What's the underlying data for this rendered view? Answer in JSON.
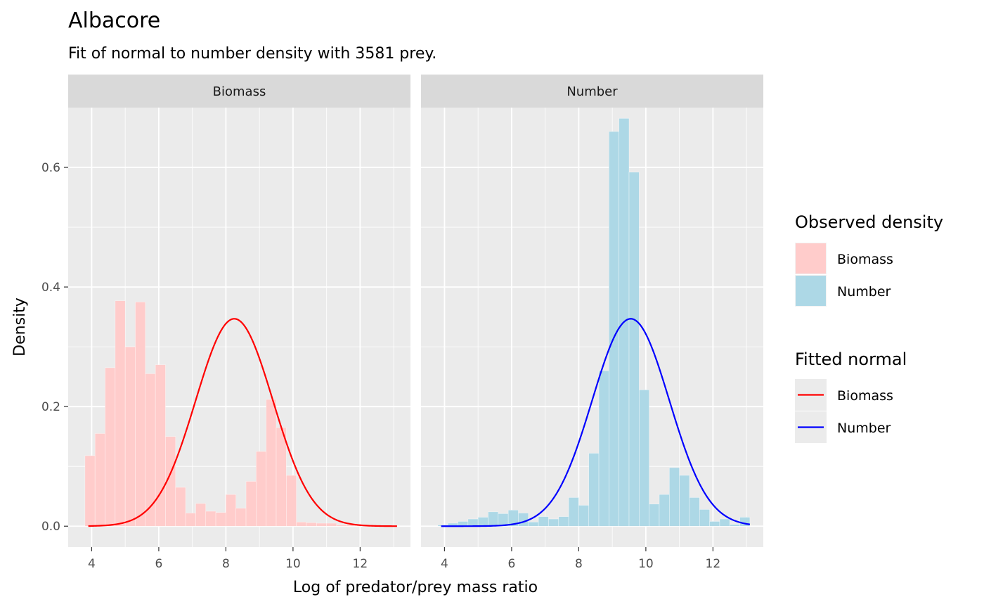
{
  "chart_data": {
    "type": "bar",
    "title": "Albacore",
    "subtitle": "Fit of normal to number density with 3581 prey.",
    "xlabel": "Log of predator/prey mass ratio",
    "ylabel": "Density",
    "xlim": [
      3.3,
      13.5
    ],
    "ylim": [
      -0.035,
      0.7
    ],
    "x_ticks": [
      4,
      6,
      8,
      10,
      12
    ],
    "y_ticks": [
      0.0,
      0.2,
      0.4,
      0.6
    ],
    "y_tick_labels": [
      "0.0",
      "0.2",
      "0.4",
      "0.6"
    ],
    "bin_width": 0.3,
    "panels": [
      {
        "strip": "Biomass",
        "bar_color": "#ffcccb",
        "line_color": "#ff0000",
        "bin_centers": [
          3.95,
          4.25,
          4.55,
          4.85,
          5.15,
          5.45,
          5.75,
          6.05,
          6.35,
          6.65,
          6.95,
          7.25,
          7.55,
          7.85,
          8.15,
          8.45,
          8.75,
          9.05,
          9.35,
          9.65,
          9.95,
          10.25,
          10.55,
          10.85,
          11.15,
          11.45,
          11.75,
          12.05,
          12.35,
          12.65,
          12.95
        ],
        "values": [
          0.118,
          0.155,
          0.265,
          0.377,
          0.3,
          0.375,
          0.255,
          0.27,
          0.15,
          0.065,
          0.022,
          0.038,
          0.025,
          0.023,
          0.053,
          0.03,
          0.075,
          0.125,
          0.212,
          0.165,
          0.085,
          0.007,
          0.006,
          0.005,
          0.005,
          0.002,
          0.002,
          0.001,
          0.001,
          0.001,
          0.001
        ],
        "fit": {
          "mean": 8.25,
          "sd": 1.15,
          "x_range": [
            3.9,
            13.1
          ]
        }
      },
      {
        "strip": "Number",
        "bar_color": "#add8e6",
        "line_color": "#0000ff",
        "bin_centers": [
          3.95,
          4.25,
          4.55,
          4.85,
          5.15,
          5.45,
          5.75,
          6.05,
          6.35,
          6.65,
          6.95,
          7.25,
          7.55,
          7.85,
          8.15,
          8.45,
          8.75,
          9.05,
          9.35,
          9.65,
          9.95,
          10.25,
          10.55,
          10.85,
          11.15,
          11.45,
          11.75,
          12.05,
          12.35,
          12.65,
          12.95
        ],
        "values": [
          0.002,
          0.005,
          0.008,
          0.012,
          0.015,
          0.024,
          0.021,
          0.027,
          0.022,
          0.007,
          0.016,
          0.012,
          0.016,
          0.048,
          0.035,
          0.122,
          0.26,
          0.66,
          0.682,
          0.592,
          0.228,
          0.037,
          0.053,
          0.098,
          0.085,
          0.048,
          0.028,
          0.008,
          0.012,
          0.003,
          0.015
        ],
        "fit": {
          "mean": 9.55,
          "sd": 1.15,
          "x_range": [
            3.9,
            13.1
          ]
        }
      }
    ],
    "legend": {
      "position": "right",
      "observed_title": "Observed density",
      "observed_items": [
        {
          "label": "Biomass",
          "color": "#ffcccb"
        },
        {
          "label": "Number",
          "color": "#add8e6"
        }
      ],
      "fitted_title": "Fitted normal",
      "fitted_items": [
        {
          "label": "Biomass",
          "color": "#ff0000"
        },
        {
          "label": "Number",
          "color": "#0000ff"
        }
      ]
    }
  }
}
